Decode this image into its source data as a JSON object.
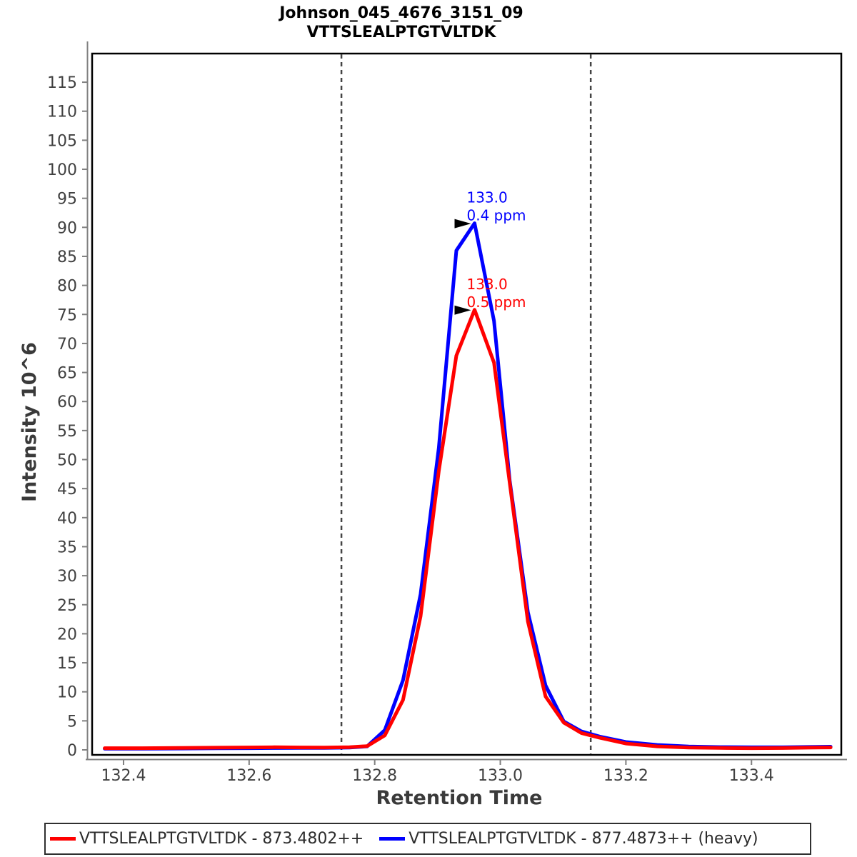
{
  "window": {
    "background": "#ffffff"
  },
  "title": {
    "line1": "Johnson_045_4676_3151_09",
    "line2": "VTTSLEALPTGTVLTDK"
  },
  "chart_data": {
    "type": "line",
    "title": "Johnson_045_4676_3151_09 — VTTSLEALPTGTVLTDK",
    "xlabel": "Retention Time",
    "ylabel": "Intensity 10^6",
    "xlim": [
      132.35,
      133.543
    ],
    "ylim": [
      -0.86,
      119.93
    ],
    "grid": false,
    "legend_position": "bottom",
    "x_ticks": [
      132.4,
      132.6,
      132.8,
      133.0,
      133.2,
      133.4
    ],
    "x_tick_labels": [
      "132.4",
      "132.6",
      "132.8",
      "133.0",
      "133.2",
      "133.4"
    ],
    "y_tick_min": 0,
    "y_tick_max": 115,
    "y_tick_step": 5,
    "axis_color": "#808080",
    "frame_color": "#000000",
    "tick_label_color": "#404040",
    "peak_boundaries": {
      "left_rt": 132.747,
      "right_rt": 133.144,
      "style": "dashed",
      "color": "#444444"
    },
    "series": [
      {
        "name": "light",
        "legend_label": "VTTSLEALPTGTVLTDK - 873.4802++",
        "color": "#ff0000",
        "points": [
          [
            132.37,
            0.3
          ],
          [
            132.43,
            0.3
          ],
          [
            132.49,
            0.33
          ],
          [
            132.55,
            0.38
          ],
          [
            132.6,
            0.42
          ],
          [
            132.64,
            0.45
          ],
          [
            132.68,
            0.42
          ],
          [
            132.72,
            0.4
          ],
          [
            132.76,
            0.45
          ],
          [
            132.788,
            0.65
          ],
          [
            132.816,
            2.5
          ],
          [
            132.845,
            8.6
          ],
          [
            132.873,
            23.0
          ],
          [
            132.902,
            48.0
          ],
          [
            132.93,
            67.9
          ],
          [
            132.959,
            75.8
          ],
          [
            132.99,
            66.7
          ],
          [
            133.015,
            46.0
          ],
          [
            133.044,
            22.1
          ],
          [
            133.072,
            9.2
          ],
          [
            133.101,
            4.7
          ],
          [
            133.129,
            2.9
          ],
          [
            133.158,
            2.1
          ],
          [
            133.2,
            1.1
          ],
          [
            133.25,
            0.6
          ],
          [
            133.3,
            0.4
          ],
          [
            133.35,
            0.33
          ],
          [
            133.4,
            0.3
          ],
          [
            133.45,
            0.32
          ],
          [
            133.49,
            0.38
          ],
          [
            133.526,
            0.42
          ]
        ]
      },
      {
        "name": "heavy",
        "legend_label": "VTTSLEALPTGTVLTDK - 877.4873++ (heavy)",
        "color": "#0000ff",
        "points": [
          [
            132.37,
            0.2
          ],
          [
            132.43,
            0.2
          ],
          [
            132.49,
            0.23
          ],
          [
            132.55,
            0.27
          ],
          [
            132.6,
            0.3
          ],
          [
            132.64,
            0.32
          ],
          [
            132.68,
            0.33
          ],
          [
            132.72,
            0.35
          ],
          [
            132.76,
            0.4
          ],
          [
            132.788,
            0.6
          ],
          [
            132.816,
            3.4
          ],
          [
            132.845,
            12.0
          ],
          [
            132.873,
            26.8
          ],
          [
            132.902,
            52.0
          ],
          [
            132.93,
            86.0
          ],
          [
            132.959,
            90.7
          ],
          [
            132.99,
            73.9
          ],
          [
            133.015,
            46.4
          ],
          [
            133.044,
            23.7
          ],
          [
            133.072,
            11.1
          ],
          [
            133.101,
            4.9
          ],
          [
            133.129,
            3.2
          ],
          [
            133.158,
            2.3
          ],
          [
            133.2,
            1.35
          ],
          [
            133.25,
            0.85
          ],
          [
            133.3,
            0.58
          ],
          [
            133.35,
            0.48
          ],
          [
            133.4,
            0.44
          ],
          [
            133.45,
            0.44
          ],
          [
            133.49,
            0.5
          ],
          [
            133.526,
            0.55
          ]
        ]
      }
    ],
    "annotations": [
      {
        "series": "heavy",
        "lines": [
          "133.0",
          "0.4 ppm"
        ],
        "color": "#0000ff",
        "rt": 132.959,
        "intensity": 90.7,
        "arrow_color": "#000000"
      },
      {
        "series": "light",
        "lines": [
          "133.0",
          "0.5 ppm"
        ],
        "color": "#ff0000",
        "rt": 132.959,
        "intensity": 75.8,
        "arrow_color": "#000000"
      }
    ]
  }
}
